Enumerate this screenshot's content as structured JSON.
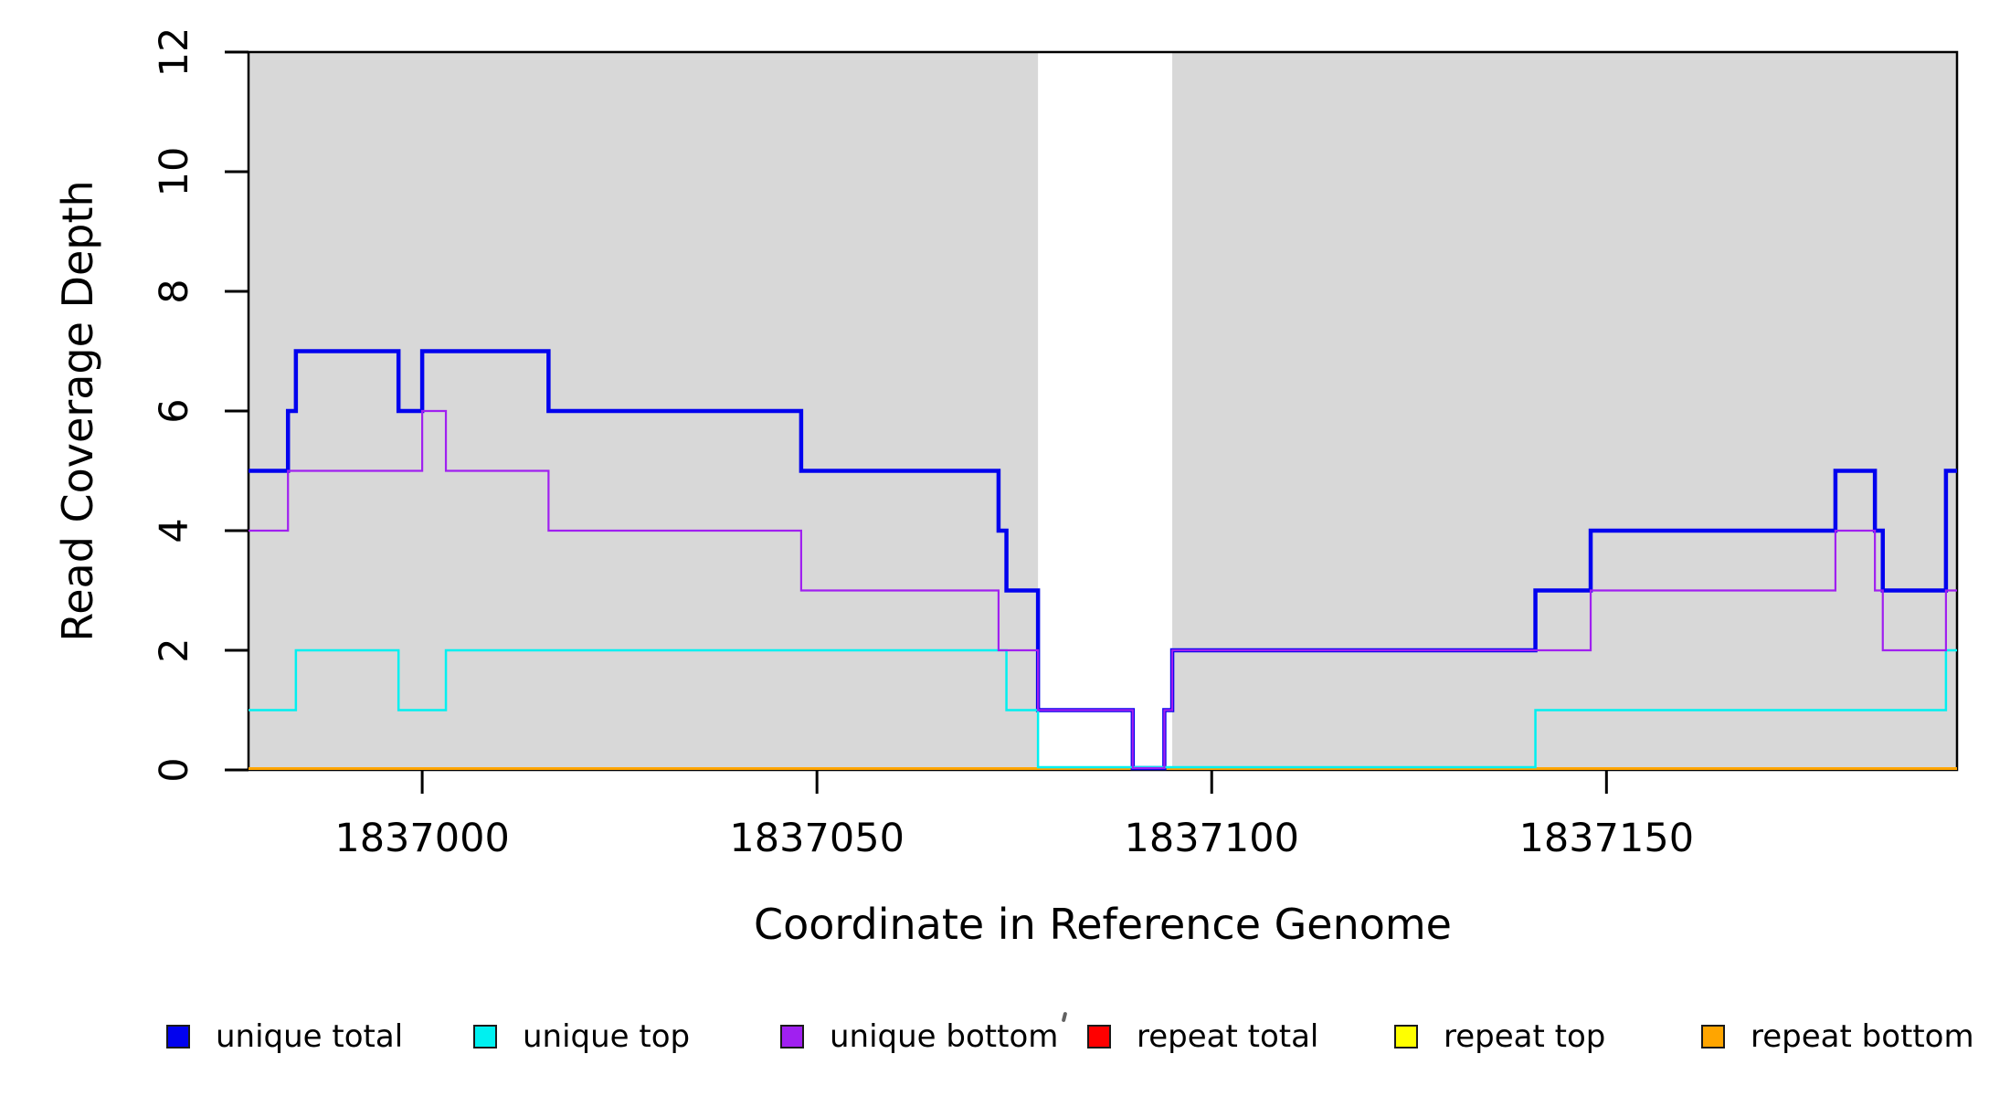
{
  "figure": {
    "xlabel": "Coordinate in Reference Genome",
    "ylabel": "Read Coverage Depth"
  },
  "chart_data": {
    "type": "line",
    "subtype": "step-after",
    "title": "",
    "xlabel": "Coordinate in Reference Genome",
    "ylabel": "Read Coverage Depth",
    "xlim": [
      1836978,
      1837194.4
    ],
    "ylim": [
      0,
      12
    ],
    "xticks": [
      1837000,
      1837050,
      1837100,
      1837150
    ],
    "yticks": [
      0,
      2,
      4,
      6,
      8,
      10,
      12
    ],
    "grid": false,
    "legend_position": "bottom",
    "background_band_color": "#d8d8d8",
    "shaded_regions": [
      [
        1836978,
        1837078
      ],
      [
        1837095,
        1837194.4
      ]
    ],
    "series": [
      {
        "name": "unique total",
        "color": "#0202ee",
        "width": 4.5,
        "z": 4,
        "zero_offset": 2,
        "points": [
          [
            1836978,
            5
          ],
          [
            1836983,
            6
          ],
          [
            1836984,
            7
          ],
          [
            1836997,
            6
          ],
          [
            1837000,
            7
          ],
          [
            1837016,
            6
          ],
          [
            1837048,
            5
          ],
          [
            1837073,
            4
          ],
          [
            1837074,
            3
          ],
          [
            1837078,
            1
          ],
          [
            1837090,
            0
          ],
          [
            1837094,
            1
          ],
          [
            1837095,
            2
          ],
          [
            1837141,
            3
          ],
          [
            1837148,
            4
          ],
          [
            1837179,
            5
          ],
          [
            1837184,
            4
          ],
          [
            1837185,
            3
          ],
          [
            1837193,
            5
          ]
        ]
      },
      {
        "name": "unique top",
        "color": "#00f0f0",
        "width": 2.5,
        "z": 5,
        "zero_offset": 3,
        "points": [
          [
            1836978,
            1
          ],
          [
            1836984,
            2
          ],
          [
            1836997,
            1
          ],
          [
            1837003,
            2
          ],
          [
            1837074,
            1
          ],
          [
            1837078,
            0
          ],
          [
            1837141,
            1
          ],
          [
            1837193,
            2
          ]
        ]
      },
      {
        "name": "unique bottom",
        "color": "#a020f0",
        "width": 2.2,
        "z": 6,
        "zero_offset": 2,
        "points": [
          [
            1836978,
            4
          ],
          [
            1836983,
            5
          ],
          [
            1837000,
            6
          ],
          [
            1837003,
            5
          ],
          [
            1837016,
            4
          ],
          [
            1837048,
            3
          ],
          [
            1837073,
            2
          ],
          [
            1837078,
            1
          ],
          [
            1837090,
            0
          ],
          [
            1837094,
            1
          ],
          [
            1837095,
            2
          ],
          [
            1837148,
            3
          ],
          [
            1837179,
            4
          ],
          [
            1837184,
            3
          ],
          [
            1837185,
            2
          ],
          [
            1837193,
            3
          ]
        ]
      },
      {
        "name": "repeat total",
        "color": "#ff0000",
        "width": 3,
        "z": 1,
        "zero_offset": 1.5,
        "points": [
          [
            1836978,
            0
          ]
        ]
      },
      {
        "name": "repeat top",
        "color": "#ffff00",
        "width": 3,
        "z": 2,
        "zero_offset": 1.5,
        "points": [
          [
            1836978,
            0
          ]
        ]
      },
      {
        "name": "repeat bottom",
        "color": "#ffa500",
        "width": 3,
        "z": 3,
        "zero_offset": 1.5,
        "points": [
          [
            1836978,
            0
          ]
        ]
      }
    ]
  },
  "legend": {
    "items": [
      {
        "label": "unique total",
        "color": "#0202ee"
      },
      {
        "label": "unique top",
        "color": "#00f0f0"
      },
      {
        "label": "unique bottom",
        "color": "#a020f0"
      },
      {
        "label": "repeat total",
        "color": "#ff0000"
      },
      {
        "label": "repeat top",
        "color": "#ffff00"
      },
      {
        "label": "repeat bottom",
        "color": "#ffa500"
      }
    ]
  }
}
